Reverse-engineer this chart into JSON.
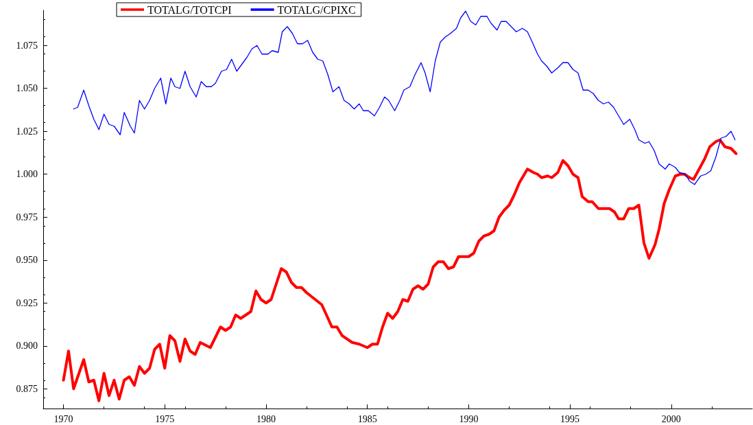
{
  "chart_data": {
    "type": "line",
    "xlim": [
      1969,
      2004
    ],
    "xticks": [
      1970,
      1975,
      1980,
      1985,
      1990,
      1995,
      2000
    ],
    "ylim": [
      0.8635,
      1.0955
    ],
    "yticks": [
      {
        "value": 0.875,
        "label": "0.875"
      },
      {
        "value": 0.9,
        "label": "0.900"
      },
      {
        "value": 0.925,
        "label": "0.925"
      },
      {
        "value": 0.95,
        "label": "0.950"
      },
      {
        "value": 0.975,
        "label": "0.975"
      },
      {
        "value": 1.0,
        "label": "1.000"
      },
      {
        "value": 1.025,
        "label": "1.025"
      },
      {
        "value": 1.05,
        "label": "1.050"
      },
      {
        "value": 1.075,
        "label": "1.075"
      }
    ],
    "grid": false,
    "legend": "top",
    "marker": "none",
    "line_style": "solid",
    "series": [
      {
        "name": "TOTALG/TOTCPI",
        "color": "#ff0000",
        "x": [
          1970.0,
          1970.25,
          1970.5,
          1971.0,
          1971.25,
          1971.5,
          1971.75,
          1972.0,
          1972.25,
          1972.5,
          1972.75,
          1973.0,
          1973.25,
          1973.5,
          1973.75,
          1974.0,
          1974.25,
          1974.5,
          1974.75,
          1975.0,
          1975.25,
          1975.5,
          1975.75,
          1976.0,
          1976.25,
          1976.5,
          1976.75,
          1977.25,
          1977.75,
          1978.0,
          1978.25,
          1978.5,
          1978.75,
          1979.25,
          1979.5,
          1979.75,
          1980.0,
          1980.25,
          1980.75,
          1981.0,
          1981.25,
          1981.5,
          1981.75,
          1982.0,
          1982.75,
          1983.25,
          1983.5,
          1983.75,
          1984.25,
          1984.6,
          1985.0,
          1985.25,
          1985.5,
          1985.75,
          1986.0,
          1986.25,
          1986.5,
          1986.75,
          1987.0,
          1987.25,
          1987.5,
          1987.75,
          1988.0,
          1988.25,
          1988.5,
          1988.75,
          1989.0,
          1989.25,
          1989.5,
          1990.0,
          1990.25,
          1990.5,
          1990.75,
          1991.0,
          1991.25,
          1991.5,
          1991.75,
          1992.0,
          1992.25,
          1992.5,
          1992.9,
          1993.2,
          1993.4,
          1993.6,
          1993.9,
          1994.1,
          1994.4,
          1994.65,
          1994.9,
          1995.15,
          1995.4,
          1995.6,
          1995.9,
          1996.1,
          1996.4,
          1996.7,
          1996.95,
          1997.2,
          1997.4,
          1997.65,
          1997.9,
          1998.15,
          1998.4,
          1998.65,
          1998.9,
          1999.2,
          1999.4,
          1999.65,
          1999.9,
          2000.2,
          2000.45,
          2000.65,
          2000.9,
          2001.1,
          2001.65,
          2001.9,
          2002.2,
          2002.4,
          2002.65,
          2002.95,
          2003.2
        ],
        "values": [
          0.88,
          0.897,
          0.875,
          0.892,
          0.879,
          0.88,
          0.868,
          0.884,
          0.871,
          0.88,
          0.869,
          0.88,
          0.882,
          0.877,
          0.888,
          0.884,
          0.887,
          0.898,
          0.901,
          0.887,
          0.906,
          0.903,
          0.891,
          0.904,
          0.897,
          0.895,
          0.902,
          0.899,
          0.911,
          0.909,
          0.911,
          0.918,
          0.916,
          0.92,
          0.932,
          0.927,
          0.925,
          0.927,
          0.945,
          0.943,
          0.937,
          0.934,
          0.934,
          0.931,
          0.924,
          0.911,
          0.911,
          0.906,
          0.902,
          0.901,
          0.899,
          0.901,
          0.901,
          0.911,
          0.919,
          0.916,
          0.92,
          0.927,
          0.926,
          0.933,
          0.935,
          0.933,
          0.936,
          0.946,
          0.949,
          0.949,
          0.945,
          0.946,
          0.952,
          0.952,
          0.954,
          0.961,
          0.964,
          0.965,
          0.967,
          0.975,
          0.979,
          0.982,
          0.988,
          0.995,
          1.003,
          1.001,
          1.0,
          0.998,
          0.999,
          0.998,
          1.001,
          1.008,
          1.005,
          1.0,
          0.998,
          0.987,
          0.984,
          0.984,
          0.98,
          0.98,
          0.98,
          0.978,
          0.974,
          0.974,
          0.98,
          0.98,
          0.982,
          0.96,
          0.951,
          0.959,
          0.968,
          0.983,
          0.991,
          0.999,
          1.0,
          1.0,
          0.998,
          0.997,
          1.009,
          1.016,
          1.019,
          1.02,
          1.016,
          1.015,
          1.012
        ]
      },
      {
        "name": "TOTALG/CPIXC",
        "color": "#0000ff",
        "x": [
          1970.5,
          1970.7,
          1971.0,
          1971.25,
          1971.5,
          1971.75,
          1972.0,
          1972.25,
          1972.5,
          1972.8,
          1973.0,
          1973.3,
          1973.5,
          1973.75,
          1974.0,
          1974.25,
          1974.5,
          1974.8,
          1975.05,
          1975.3,
          1975.5,
          1975.75,
          1976.0,
          1976.25,
          1976.55,
          1976.8,
          1977.05,
          1977.3,
          1977.5,
          1977.8,
          1978.05,
          1978.3,
          1978.55,
          1978.8,
          1979.05,
          1979.3,
          1979.55,
          1979.8,
          1980.1,
          1980.3,
          1980.6,
          1980.8,
          1981.05,
          1981.3,
          1981.55,
          1981.8,
          1982.05,
          1982.3,
          1982.55,
          1982.8,
          1983.05,
          1983.3,
          1983.6,
          1983.85,
          1984.1,
          1984.35,
          1984.6,
          1984.8,
          1985.05,
          1985.35,
          1985.6,
          1985.85,
          1986.05,
          1986.35,
          1986.6,
          1986.8,
          1987.1,
          1987.35,
          1987.65,
          1987.85,
          1988.1,
          1988.35,
          1988.6,
          1988.85,
          1989.1,
          1989.4,
          1989.6,
          1989.85,
          1990.1,
          1990.35,
          1990.6,
          1990.9,
          1991.1,
          1991.4,
          1991.6,
          1991.85,
          1992.1,
          1992.35,
          1992.65,
          1992.9,
          1993.1,
          1993.4,
          1993.6,
          1993.85,
          1994.1,
          1994.4,
          1994.65,
          1994.9,
          1995.15,
          1995.4,
          1995.65,
          1995.9,
          1996.15,
          1996.4,
          1996.65,
          1996.9,
          1997.15,
          1997.4,
          1997.65,
          1997.95,
          1998.2,
          1998.4,
          1998.7,
          1998.9,
          1999.15,
          1999.4,
          1999.7,
          1999.9,
          2000.2,
          2000.4,
          2000.7,
          2000.9,
          2001.15,
          2001.45,
          2001.7,
          2001.95,
          2002.2,
          2002.45,
          2002.7,
          2002.95,
          2003.15
        ],
        "values": [
          1.038,
          1.039,
          1.049,
          1.04,
          1.032,
          1.026,
          1.035,
          1.029,
          1.028,
          1.023,
          1.036,
          1.028,
          1.024,
          1.043,
          1.038,
          1.043,
          1.05,
          1.056,
          1.041,
          1.056,
          1.051,
          1.05,
          1.06,
          1.051,
          1.045,
          1.054,
          1.051,
          1.051,
          1.053,
          1.06,
          1.061,
          1.067,
          1.06,
          1.064,
          1.068,
          1.073,
          1.075,
          1.07,
          1.07,
          1.072,
          1.071,
          1.083,
          1.086,
          1.082,
          1.076,
          1.076,
          1.078,
          1.071,
          1.067,
          1.066,
          1.058,
          1.048,
          1.051,
          1.043,
          1.041,
          1.038,
          1.041,
          1.037,
          1.037,
          1.034,
          1.039,
          1.045,
          1.043,
          1.037,
          1.043,
          1.049,
          1.051,
          1.058,
          1.065,
          1.059,
          1.048,
          1.066,
          1.077,
          1.08,
          1.082,
          1.085,
          1.091,
          1.095,
          1.089,
          1.087,
          1.092,
          1.092,
          1.088,
          1.084,
          1.089,
          1.089,
          1.086,
          1.083,
          1.085,
          1.083,
          1.078,
          1.07,
          1.066,
          1.063,
          1.059,
          1.062,
          1.065,
          1.065,
          1.061,
          1.059,
          1.049,
          1.049,
          1.047,
          1.043,
          1.041,
          1.042,
          1.039,
          1.034,
          1.029,
          1.032,
          1.026,
          1.02,
          1.018,
          1.019,
          1.014,
          1.006,
          1.003,
          1.006,
          1.004,
          1.001,
          1.0,
          0.996,
          0.994,
          0.999,
          1.0,
          1.002,
          1.01,
          1.021,
          1.022,
          1.025,
          1.02
        ]
      }
    ]
  }
}
